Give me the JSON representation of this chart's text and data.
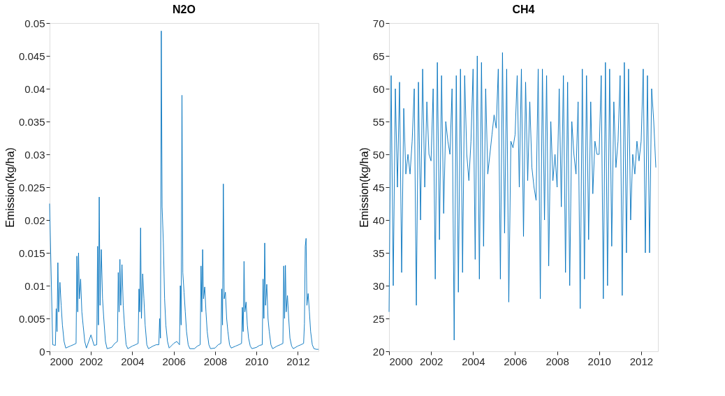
{
  "chart_data": [
    {
      "type": "line",
      "title": "N2O",
      "ylabel": "Emission(kg/ha)",
      "color": "#0072bd",
      "grid": false,
      "xlim": [
        2000,
        2013
      ],
      "xticks": [
        2000,
        2002,
        2004,
        2006,
        2008,
        2010,
        2012
      ],
      "ylim": [
        0,
        0.05
      ],
      "yticks": [
        0,
        0.005,
        0.01,
        0.015,
        0.02,
        0.025,
        0.03,
        0.035,
        0.04,
        0.045,
        0.05
      ],
      "x": [
        2000.0,
        2000.15,
        2000.28,
        2000.32,
        2000.36,
        2000.4,
        2000.44,
        2000.5,
        2000.56,
        2000.62,
        2000.7,
        2000.78,
        2001.0,
        2001.15,
        2001.28,
        2001.32,
        2001.36,
        2001.4,
        2001.44,
        2001.5,
        2001.56,
        2001.62,
        2001.7,
        2001.78,
        2002.0,
        2002.15,
        2002.28,
        2002.32,
        2002.36,
        2002.4,
        2002.44,
        2002.5,
        2002.56,
        2002.62,
        2002.7,
        2002.78,
        2003.0,
        2003.15,
        2003.28,
        2003.32,
        2003.36,
        2003.4,
        2003.44,
        2003.5,
        2003.56,
        2003.62,
        2003.7,
        2003.78,
        2004.0,
        2004.15,
        2004.28,
        2004.32,
        2004.36,
        2004.4,
        2004.44,
        2004.5,
        2004.56,
        2004.62,
        2004.7,
        2004.78,
        2005.0,
        2005.15,
        2005.28,
        2005.32,
        2005.36,
        2005.4,
        2005.44,
        2005.5,
        2005.56,
        2005.62,
        2005.7,
        2005.78,
        2006.0,
        2006.15,
        2006.28,
        2006.32,
        2006.36,
        2006.4,
        2006.44,
        2006.5,
        2006.56,
        2006.62,
        2006.7,
        2006.78,
        2007.0,
        2007.15,
        2007.28,
        2007.32,
        2007.36,
        2007.4,
        2007.44,
        2007.5,
        2007.56,
        2007.62,
        2007.7,
        2007.78,
        2008.0,
        2008.15,
        2008.28,
        2008.32,
        2008.36,
        2008.4,
        2008.44,
        2008.5,
        2008.56,
        2008.62,
        2008.7,
        2008.78,
        2009.0,
        2009.15,
        2009.28,
        2009.32,
        2009.36,
        2009.4,
        2009.44,
        2009.5,
        2009.56,
        2009.62,
        2009.7,
        2009.78,
        2010.0,
        2010.15,
        2010.28,
        2010.32,
        2010.36,
        2010.4,
        2010.44,
        2010.5,
        2010.56,
        2010.62,
        2010.7,
        2010.78,
        2011.0,
        2011.15,
        2011.28,
        2011.32,
        2011.36,
        2011.4,
        2011.44,
        2011.5,
        2011.56,
        2011.62,
        2011.7,
        2011.78,
        2012.0,
        2012.15,
        2012.28,
        2012.32,
        2012.36,
        2012.4,
        2012.44,
        2012.5,
        2012.56,
        2012.62,
        2012.7,
        2012.78,
        2012.9,
        2013.0
      ],
      "values": [
        0.0225,
        0.001,
        0.0009,
        0.0065,
        0.003,
        0.0135,
        0.006,
        0.0105,
        0.007,
        0.004,
        0.0015,
        0.0005,
        0.0008,
        0.001,
        0.0012,
        0.0145,
        0.006,
        0.015,
        0.008,
        0.011,
        0.006,
        0.004,
        0.0015,
        0.0005,
        0.0025,
        0.0009,
        0.001,
        0.016,
        0.004,
        0.0235,
        0.007,
        0.0155,
        0.008,
        0.005,
        0.0015,
        0.0004,
        0.0006,
        0.0012,
        0.0015,
        0.012,
        0.006,
        0.014,
        0.007,
        0.0132,
        0.007,
        0.004,
        0.001,
        0.0004,
        0.0008,
        0.001,
        0.0012,
        0.0095,
        0.006,
        0.0188,
        0.005,
        0.0118,
        0.008,
        0.004,
        0.001,
        0.0004,
        0.0008,
        0.001,
        0.001,
        0.005,
        0.002,
        0.0488,
        0.022,
        0.0165,
        0.008,
        0.004,
        0.0015,
        0.0005,
        0.0012,
        0.0015,
        0.001,
        0.01,
        0.004,
        0.039,
        0.012,
        0.009,
        0.006,
        0.003,
        0.001,
        0.0004,
        0.0004,
        0.0008,
        0.001,
        0.013,
        0.006,
        0.0155,
        0.008,
        0.0098,
        0.006,
        0.003,
        0.001,
        0.0004,
        0.0005,
        0.001,
        0.0012,
        0.0095,
        0.004,
        0.0255,
        0.008,
        0.009,
        0.005,
        0.003,
        0.001,
        0.0005,
        0.0008,
        0.001,
        0.0012,
        0.0067,
        0.003,
        0.0137,
        0.006,
        0.0075,
        0.004,
        0.002,
        0.0008,
        0.0004,
        0.0006,
        0.0009,
        0.001,
        0.011,
        0.005,
        0.0165,
        0.007,
        0.0102,
        0.005,
        0.003,
        0.001,
        0.0004,
        0.0008,
        0.001,
        0.0012,
        0.013,
        0.005,
        0.0131,
        0.006,
        0.0085,
        0.005,
        0.002,
        0.0008,
        0.0004,
        0.0008,
        0.001,
        0.0012,
        0.0042,
        0.016,
        0.0172,
        0.007,
        0.0088,
        0.006,
        0.003,
        0.001,
        0.0004,
        0.0003,
        0.0003
      ]
    },
    {
      "type": "line",
      "title": "CH4",
      "ylabel": "Emission(kg/ha)",
      "color": "#0072bd",
      "grid": false,
      "xlim": [
        2000,
        2012.8
      ],
      "xticks": [
        2000,
        2002,
        2004,
        2006,
        2008,
        2010,
        2012
      ],
      "ylim": [
        20,
        70
      ],
      "yticks": [
        20,
        25,
        30,
        35,
        40,
        45,
        50,
        55,
        60,
        65,
        70
      ],
      "x": [
        2000.0,
        2000.1,
        2000.2,
        2000.3,
        2000.4,
        2000.5,
        2000.6,
        2000.7,
        2000.8,
        2000.9,
        2001.0,
        2001.1,
        2001.2,
        2001.3,
        2001.4,
        2001.5,
        2001.6,
        2001.7,
        2001.8,
        2001.9,
        2002.0,
        2002.1,
        2002.2,
        2002.3,
        2002.4,
        2002.5,
        2002.6,
        2002.7,
        2002.8,
        2002.9,
        2003.0,
        2003.1,
        2003.2,
        2003.3,
        2003.4,
        2003.5,
        2003.6,
        2003.7,
        2003.8,
        2003.9,
        2004.0,
        2004.1,
        2004.2,
        2004.3,
        2004.4,
        2004.5,
        2004.6,
        2004.7,
        2004.8,
        2004.9,
        2005.0,
        2005.1,
        2005.2,
        2005.3,
        2005.4,
        2005.5,
        2005.6,
        2005.7,
        2005.8,
        2005.9,
        2006.0,
        2006.1,
        2006.2,
        2006.3,
        2006.4,
        2006.5,
        2006.6,
        2006.7,
        2006.8,
        2006.9,
        2007.0,
        2007.1,
        2007.2,
        2007.3,
        2007.4,
        2007.5,
        2007.6,
        2007.7,
        2007.8,
        2007.9,
        2008.0,
        2008.1,
        2008.2,
        2008.3,
        2008.4,
        2008.5,
        2008.6,
        2008.7,
        2008.8,
        2008.9,
        2009.0,
        2009.1,
        2009.2,
        2009.3,
        2009.4,
        2009.5,
        2009.6,
        2009.7,
        2009.8,
        2009.9,
        2010.0,
        2010.1,
        2010.2,
        2010.3,
        2010.4,
        2010.5,
        2010.6,
        2010.7,
        2010.8,
        2010.9,
        2011.0,
        2011.1,
        2011.2,
        2011.3,
        2011.4,
        2011.5,
        2011.6,
        2011.7,
        2011.8,
        2011.9,
        2012.0,
        2012.1,
        2012.2,
        2012.3,
        2012.4,
        2012.5,
        2012.6,
        2012.7
      ],
      "values": [
        26,
        62,
        30,
        60,
        45,
        61,
        32,
        57,
        47,
        50,
        47,
        52,
        60,
        27,
        61,
        40,
        63,
        45,
        58,
        50,
        49,
        60,
        31,
        64,
        37,
        62,
        41,
        55,
        52,
        50,
        60,
        21.7,
        62,
        29,
        63,
        32,
        62,
        50,
        46,
        52,
        63,
        34,
        65,
        31,
        64,
        36,
        60,
        47,
        50,
        53,
        56,
        54,
        63,
        31,
        65.5,
        38,
        63,
        27.5,
        52,
        51,
        53,
        62,
        45,
        63,
        37.5,
        61,
        46,
        58,
        48,
        45,
        43,
        63,
        28,
        63,
        40,
        62,
        33,
        55,
        46,
        50,
        45,
        60,
        42,
        62,
        32,
        61,
        30,
        55,
        50,
        47,
        58,
        26.5,
        63,
        31,
        62,
        37,
        58,
        44,
        52,
        50,
        50,
        62,
        28,
        64,
        30,
        63,
        36,
        58,
        48,
        52,
        62,
        28.5,
        64,
        35,
        63,
        40,
        50,
        47,
        52,
        49,
        52,
        63,
        35,
        62,
        35,
        60,
        55,
        48
      ]
    }
  ]
}
